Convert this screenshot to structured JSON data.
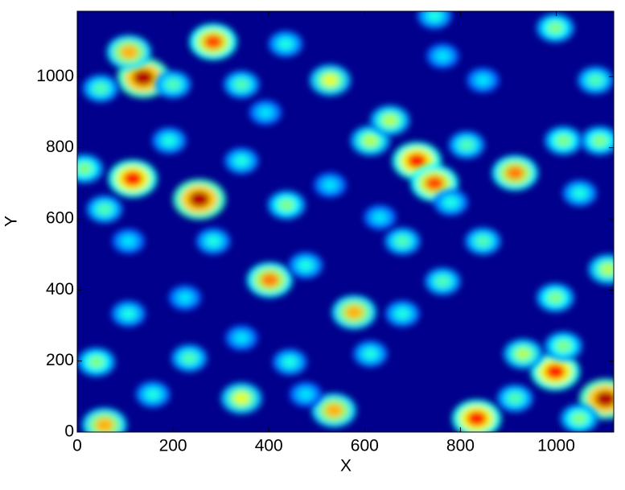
{
  "chart_data": {
    "type": "heatmap",
    "xlabel": "X",
    "ylabel": "Y",
    "xlim": [
      0,
      1120
    ],
    "ylim": [
      0,
      1184
    ],
    "xticks": [
      0,
      200,
      400,
      600,
      800,
      1000
    ],
    "yticks": [
      0,
      200,
      400,
      600,
      800,
      1000
    ],
    "colormap": "jet",
    "x": [
      284,
      138,
      108,
      255,
      116,
      709,
      746,
      914,
      402,
      578,
      998,
      1103,
      834,
      536,
      57,
      343,
      528,
      612,
      653,
      437,
      49,
      200,
      343,
      435,
      15,
      192,
      57,
      1015,
      1091,
      998,
      1082,
      1108,
      998,
      763,
      847,
      679,
      477,
      284,
      107,
      40,
      158,
      234,
      444,
      612,
      679,
      931,
      1015,
      914,
      1048,
      780,
      813,
      343,
      393,
      763,
      847,
      107,
      746,
      1049,
      632,
      528,
      225,
      477,
      343
    ],
    "y": [
      1098,
      997,
      1069,
      655,
      713,
      763,
      700,
      729,
      428,
      337,
      170,
      93,
      38,
      61,
      20,
      95,
      990,
      820,
      877,
      639,
      967,
      978,
      978,
      1092,
      741,
      820,
      627,
      820,
      820,
      1137,
      990,
      458,
      378,
      424,
      537,
      537,
      469,
      537,
      333,
      197,
      106,
      208,
      197,
      220,
      333,
      220,
      242,
      95,
      38,
      646,
      808,
      763,
      899,
      1058,
      990,
      537,
      1171,
      672,
      604,
      695,
      378,
      106,
      265
    ],
    "values": [
      0.8,
      0.95,
      0.7,
      0.95,
      0.85,
      0.85,
      0.8,
      0.75,
      0.75,
      0.7,
      0.85,
      0.95,
      0.85,
      0.7,
      0.7,
      0.6,
      0.6,
      0.55,
      0.55,
      0.5,
      0.45,
      0.45,
      0.45,
      0.4,
      0.5,
      0.4,
      0.45,
      0.5,
      0.5,
      0.5,
      0.45,
      0.55,
      0.5,
      0.45,
      0.45,
      0.45,
      0.4,
      0.4,
      0.4,
      0.5,
      0.4,
      0.45,
      0.4,
      0.4,
      0.4,
      0.55,
      0.5,
      0.45,
      0.5,
      0.4,
      0.45,
      0.4,
      0.35,
      0.35,
      0.35,
      0.35,
      0.4,
      0.4,
      0.35,
      0.35,
      0.35,
      0.35,
      0.35
    ]
  }
}
